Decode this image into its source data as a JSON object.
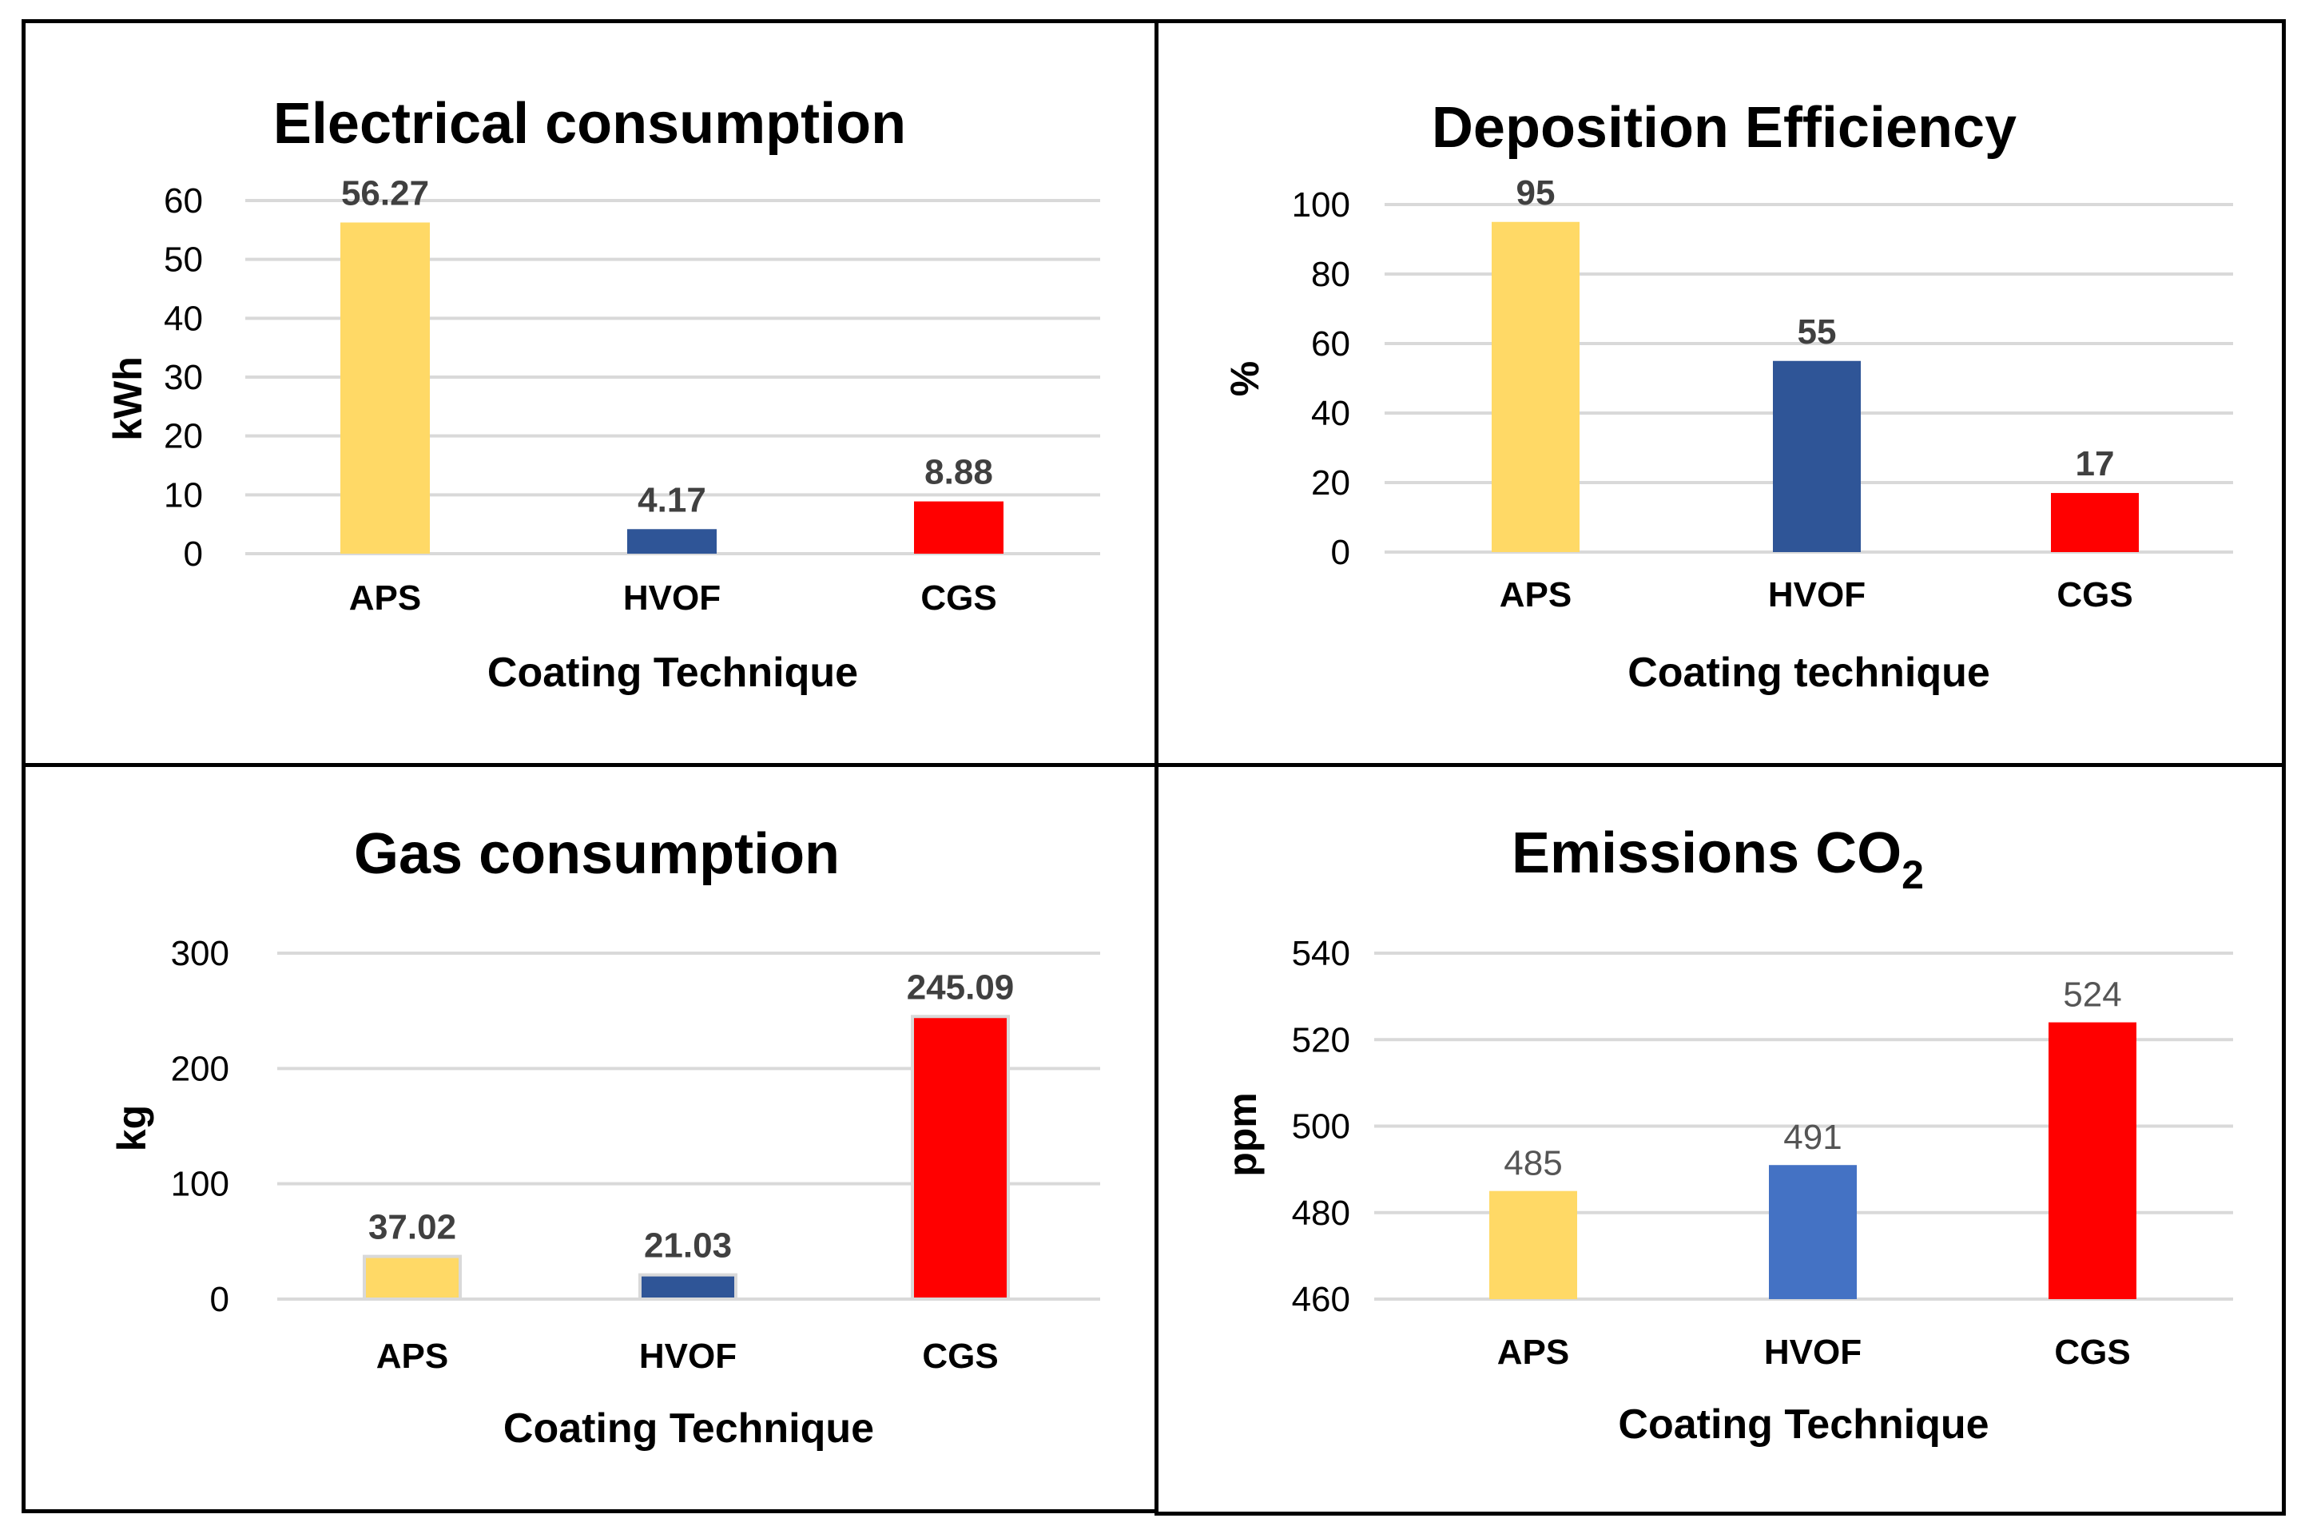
{
  "chart_data": [
    {
      "type": "bar",
      "title": "Electrical consumption",
      "categories": [
        "APS",
        "HVOF",
        "CGS"
      ],
      "values": [
        56.27,
        4.17,
        8.88
      ],
      "value_labels": [
        "56.27",
        "4.17",
        "8.88"
      ],
      "colors": [
        "#FFD966",
        "#2F5597",
        "#FF0000"
      ],
      "xlabel": "Coating Technique",
      "ylabel": "kWh",
      "ylim": [
        0,
        60
      ],
      "yticks": [
        0,
        10,
        20,
        30,
        40,
        50,
        60
      ],
      "grid": true
    },
    {
      "type": "bar",
      "title": "Deposition Efficiency",
      "categories": [
        "APS",
        "HVOF",
        "CGS"
      ],
      "values": [
        95,
        55,
        17
      ],
      "value_labels": [
        "95",
        "55",
        "17"
      ],
      "colors": [
        "#FFD966",
        "#2F5597",
        "#FF0000"
      ],
      "xlabel": "Coating technique",
      "ylabel": "%",
      "ylim": [
        0,
        100
      ],
      "yticks": [
        0,
        20,
        40,
        60,
        80,
        100
      ],
      "grid": true
    },
    {
      "type": "bar",
      "title": "Gas consumption",
      "categories": [
        "APS",
        "HVOF",
        "CGS"
      ],
      "values": [
        37.02,
        21.03,
        245.09
      ],
      "value_labels": [
        "37.02",
        "21.03",
        "245.09"
      ],
      "colors": [
        "#FFD966",
        "#2F5597",
        "#FF0000"
      ],
      "xlabel": "Coating Technique",
      "ylabel": "kg",
      "ylim": [
        0,
        300
      ],
      "yticks": [
        0,
        100,
        200,
        300
      ],
      "grid": true
    },
    {
      "type": "bar",
      "title": "Emissions CO",
      "title_subscript": "2",
      "categories": [
        "APS",
        "HVOF",
        "CGS"
      ],
      "values": [
        485,
        491,
        524
      ],
      "value_labels": [
        "485",
        "491",
        "524"
      ],
      "colors": [
        "#FFD966",
        "#4472C4",
        "#FF0000"
      ],
      "xlabel": "Coating Technique",
      "ylabel": "ppm",
      "ylim": [
        460,
        540
      ],
      "yticks": [
        460,
        480,
        500,
        520,
        540
      ],
      "grid": true
    }
  ]
}
